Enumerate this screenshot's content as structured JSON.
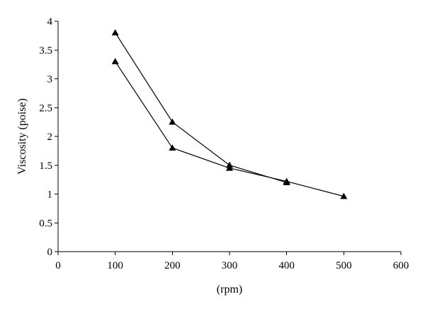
{
  "chart_data": {
    "type": "line",
    "title": "",
    "xlabel": "(rpm)",
    "ylabel": "Viscosity (poise)",
    "xlim": [
      0,
      600
    ],
    "ylim": [
      0,
      4
    ],
    "xticks": [
      0,
      100,
      200,
      300,
      400,
      500,
      600
    ],
    "yticks": [
      0,
      0.5,
      1,
      1.5,
      2,
      2.5,
      3,
      3.5,
      4
    ],
    "xtick_labels": [
      "0",
      "100",
      "200",
      "300",
      "400",
      "500",
      "600"
    ],
    "ytick_labels": [
      "0",
      "0.5",
      "1",
      "1.5",
      "2",
      "2.5",
      "3",
      "3.5",
      "4"
    ],
    "grid": false,
    "legend": "none",
    "marker": "triangle",
    "series_color": "#000000",
    "series": [
      {
        "x": [
          100,
          200,
          300,
          400
        ],
        "y": [
          3.8,
          2.25,
          1.5,
          1.2
        ]
      },
      {
        "x": [
          100,
          200,
          300,
          400,
          500
        ],
        "y": [
          3.3,
          1.8,
          1.45,
          1.22,
          0.96
        ]
      }
    ]
  }
}
